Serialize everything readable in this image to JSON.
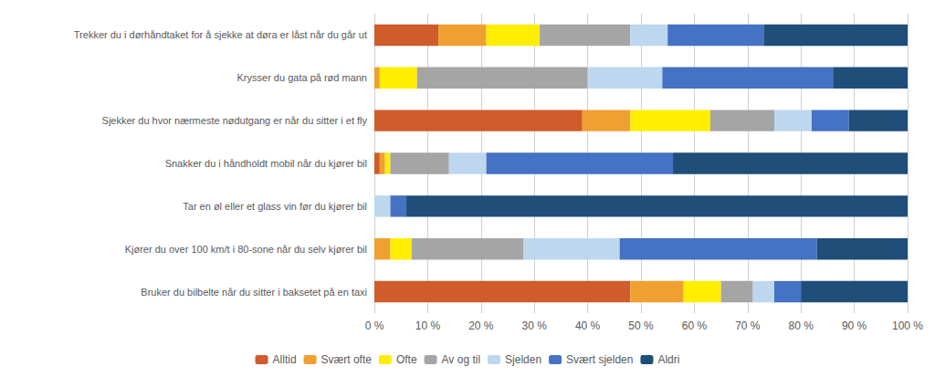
{
  "chart_data": {
    "type": "bar",
    "orientation": "horizontal",
    "stacked": true,
    "categories": [
      "Bruker du bilbelte når du sitter i baksetet på en taxi",
      "Kjører du over 100 km/t i 80-sone når du selv kjører bil",
      "Tar en øl eller et glass vin før du kjører bil",
      "Snakker du i håndholdt mobil når du kjører bil",
      "Sjekker du hvor nærmeste nødutgang er når du sitter i et fly",
      "Krysser du gata på rød mann",
      "Trekker du i dørhåndtaket for å sjekke at døra er låst når du går ut"
    ],
    "series": [
      {
        "name": "Alltid",
        "color": "#D05B2B",
        "values": [
          48,
          0,
          0,
          1,
          39,
          0,
          12
        ]
      },
      {
        "name": "Svært ofte",
        "color": "#F0A030",
        "values": [
          10,
          3,
          0,
          1,
          9,
          1,
          9
        ]
      },
      {
        "name": "Ofte",
        "color": "#FFEE00",
        "values": [
          7,
          4,
          0,
          1,
          15,
          7,
          10
        ]
      },
      {
        "name": "Av og til",
        "color": "#A5A5A5",
        "values": [
          6,
          21,
          0,
          11,
          12,
          32,
          17
        ]
      },
      {
        "name": "Sjelden",
        "color": "#BDD7EE",
        "values": [
          4,
          18,
          3,
          7,
          7,
          14,
          7
        ]
      },
      {
        "name": "Svært sjelden",
        "color": "#4472C4",
        "values": [
          5,
          37,
          3,
          35,
          7,
          32,
          18
        ]
      },
      {
        "name": "Aldri",
        "color": "#1F4E79",
        "values": [
          20,
          17,
          94,
          44,
          11,
          14,
          27
        ]
      }
    ],
    "xlim": [
      0,
      100
    ],
    "xticks": [
      {
        "value": 0,
        "label": "0 %"
      },
      {
        "value": 10,
        "label": "10 %"
      },
      {
        "value": 20,
        "label": "20 %"
      },
      {
        "value": 30,
        "label": "30 %"
      },
      {
        "value": 40,
        "label": "40 %"
      },
      {
        "value": 50,
        "label": "50 %"
      },
      {
        "value": 60,
        "label": "60 %"
      },
      {
        "value": 70,
        "label": "70 %"
      },
      {
        "value": 80,
        "label": "80 %"
      },
      {
        "value": 90,
        "label": "90 %"
      },
      {
        "value": 100,
        "label": "100 %"
      }
    ],
    "grid": true,
    "legend": "bottom"
  }
}
